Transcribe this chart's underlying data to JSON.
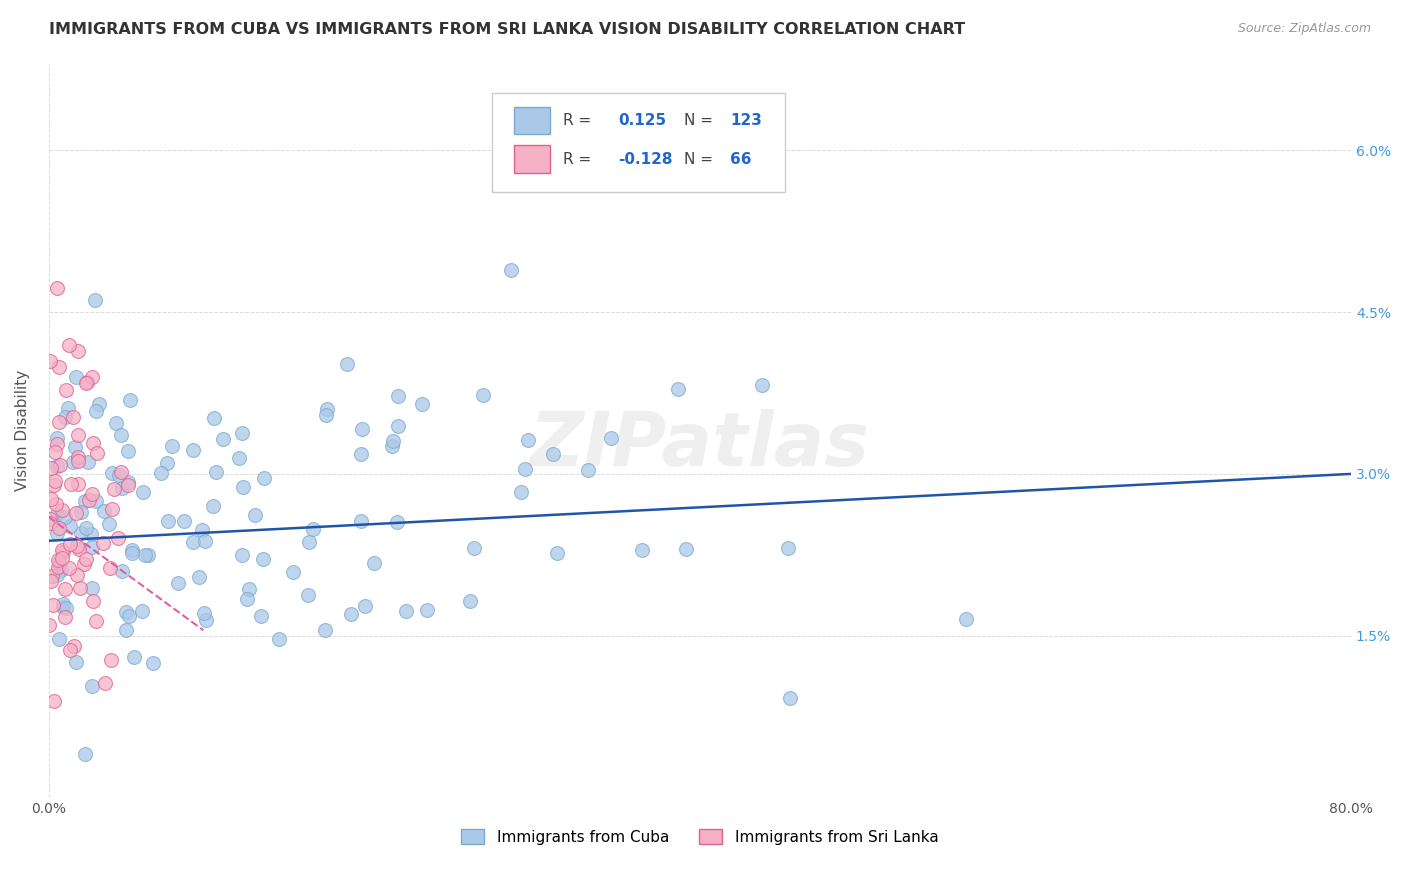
{
  "title": "IMMIGRANTS FROM CUBA VS IMMIGRANTS FROM SRI LANKA VISION DISABILITY CORRELATION CHART",
  "source": "Source: ZipAtlas.com",
  "ylabel": "Vision Disability",
  "xlim": [
    0.0,
    0.8
  ],
  "ylim": [
    0.0,
    0.068
  ],
  "yticks": [
    0.015,
    0.03,
    0.045,
    0.06
  ],
  "ytick_labels": [
    "1.5%",
    "3.0%",
    "4.5%",
    "6.0%"
  ],
  "cuba_color": "#aac8e8",
  "cuba_edge_color": "#7aaad0",
  "srilanka_color": "#f5b0c5",
  "srilanka_edge_color": "#e06090",
  "cuba_line_color": "#2255aa",
  "srilanka_line_color": "#e060a0",
  "cuba_R": 0.125,
  "cuba_N": 123,
  "srilanka_R": -0.128,
  "srilanka_N": 66,
  "watermark": "ZIPatlas",
  "watermark_color": "#cccccc",
  "background_color": "#ffffff",
  "grid_color": "#cccccc",
  "title_fontsize": 11.5,
  "axis_label_fontsize": 11,
  "tick_fontsize": 10,
  "right_tick_color": "#4499dd",
  "cuba_line_x0": 0.0,
  "cuba_line_x1": 0.8,
  "cuba_line_y0": 0.0238,
  "cuba_line_y1": 0.03,
  "srilanka_line_x0": 0.0,
  "srilanka_line_x1": 0.095,
  "srilanka_line_y0": 0.026,
  "srilanka_line_y1": 0.0155
}
